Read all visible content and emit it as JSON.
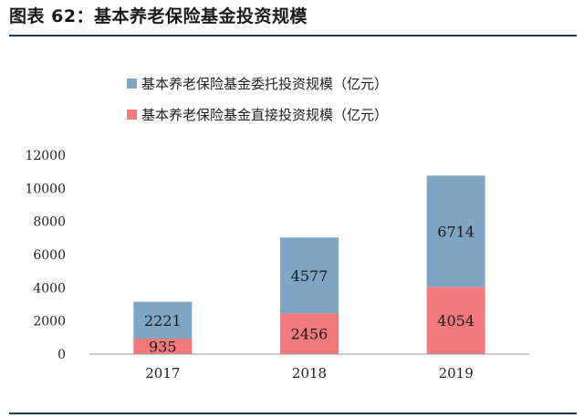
{
  "figure_title": "图表  62：基本养老保险基金投资规模",
  "colors": {
    "series_entrusted": "#7ea6c4",
    "series_direct": "#f07a7c",
    "axis": "#999999",
    "rule": "#1f3864"
  },
  "chart_data": {
    "type": "bar",
    "stacked": true,
    "categories": [
      "2017",
      "2018",
      "2019"
    ],
    "series": [
      {
        "name": "基本养老保险基金直接投资规模（亿元）",
        "values": [
          935,
          2456,
          4054
        ],
        "color": "#f07a7c"
      },
      {
        "name": "基本养老保险基金委托投资规模（亿元）",
        "values": [
          2221,
          4577,
          6714
        ],
        "color": "#7ea6c4"
      }
    ],
    "legend_order": [
      1,
      0
    ],
    "legend_position": "top-center",
    "ylim": [
      0,
      12000
    ],
    "yticks": [
      "0",
      "2000",
      "4000",
      "6000",
      "8000",
      "10000",
      "12000"
    ],
    "grid": false,
    "data_labels": true
  }
}
